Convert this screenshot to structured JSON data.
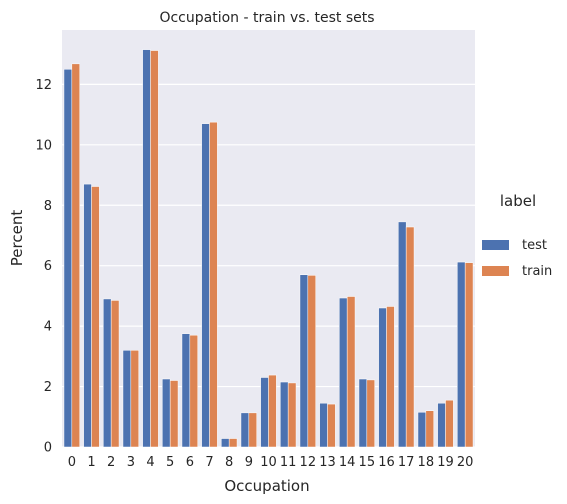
{
  "chart_data": {
    "type": "bar",
    "title": "Occupation - train vs. test sets",
    "xlabel": "Occupation",
    "ylabel": "Percent",
    "ylim": [
      0,
      13.8
    ],
    "yticks": [
      0,
      2,
      4,
      6,
      8,
      10,
      12
    ],
    "categories": [
      "0",
      "1",
      "2",
      "3",
      "4",
      "5",
      "6",
      "7",
      "8",
      "9",
      "10",
      "11",
      "12",
      "13",
      "14",
      "15",
      "16",
      "17",
      "18",
      "19",
      "20"
    ],
    "series": [
      {
        "name": "test",
        "color": "#4c72b0",
        "values": [
          12.5,
          8.7,
          4.9,
          3.2,
          13.15,
          2.25,
          3.75,
          10.7,
          0.28,
          1.13,
          2.3,
          2.15,
          5.7,
          1.45,
          4.93,
          2.25,
          4.6,
          7.45,
          1.15,
          1.45,
          6.12
        ]
      },
      {
        "name": "train",
        "color": "#dd8452",
        "values": [
          12.68,
          8.62,
          4.85,
          3.2,
          13.12,
          2.2,
          3.7,
          10.75,
          0.28,
          1.13,
          2.38,
          2.12,
          5.68,
          1.42,
          4.98,
          2.22,
          4.65,
          7.28,
          1.2,
          1.55,
          6.1
        ]
      }
    ],
    "legend": {
      "title": "label",
      "placement": "right",
      "entries": [
        "test",
        "train"
      ]
    },
    "grid": true,
    "background_color": "#eaeaf2",
    "grid_color": "#ffffff"
  }
}
